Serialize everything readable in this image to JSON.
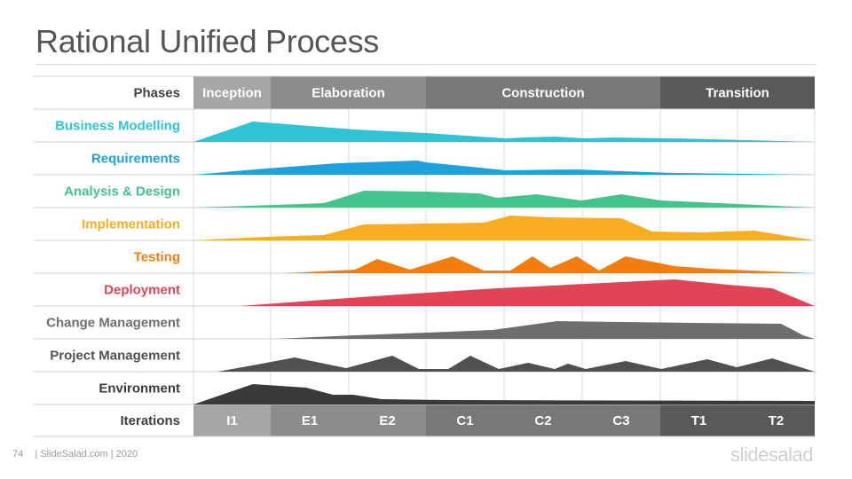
{
  "title": "Rational Unified Process",
  "phases_header": "Phases",
  "iterations_header": "Iterations",
  "phases": [
    {
      "label": "Inception",
      "color": "#a6a6a6"
    },
    {
      "label": "Elaboration",
      "color": "#8c8c8c"
    },
    {
      "label": "Construction",
      "color": "#787878"
    },
    {
      "label": "Transition",
      "color": "#595959"
    }
  ],
  "iterations": [
    {
      "label": "I1",
      "color": "#a6a6a6"
    },
    {
      "label": "E1",
      "color": "#8c8c8c"
    },
    {
      "label": "E2",
      "color": "#8c8c8c"
    },
    {
      "label": "C1",
      "color": "#787878"
    },
    {
      "label": "C2",
      "color": "#787878"
    },
    {
      "label": "C3",
      "color": "#787878"
    },
    {
      "label": "T1",
      "color": "#595959"
    },
    {
      "label": "T2",
      "color": "#595959"
    }
  ],
  "disciplines": [
    {
      "label": "Business Modelling",
      "color": "#2ec4d4"
    },
    {
      "label": "Requirements",
      "color": "#1ea1dc"
    },
    {
      "label": "Analysis & Design",
      "color": "#45c38e"
    },
    {
      "label": "Implementation",
      "color": "#f9ad22"
    },
    {
      "label": "Testing",
      "color": "#f47d0f"
    },
    {
      "label": "Deployment",
      "color": "#e04455"
    },
    {
      "label": "Change Management",
      "color": "#6e6e6e"
    },
    {
      "label": "Project Management",
      "color": "#505050"
    },
    {
      "label": "Environment",
      "color": "#3a3a3a"
    }
  ],
  "footer": {
    "page_number": "74",
    "source": "| SlideSalad.com | 2020"
  },
  "brand": "slidesalad"
}
